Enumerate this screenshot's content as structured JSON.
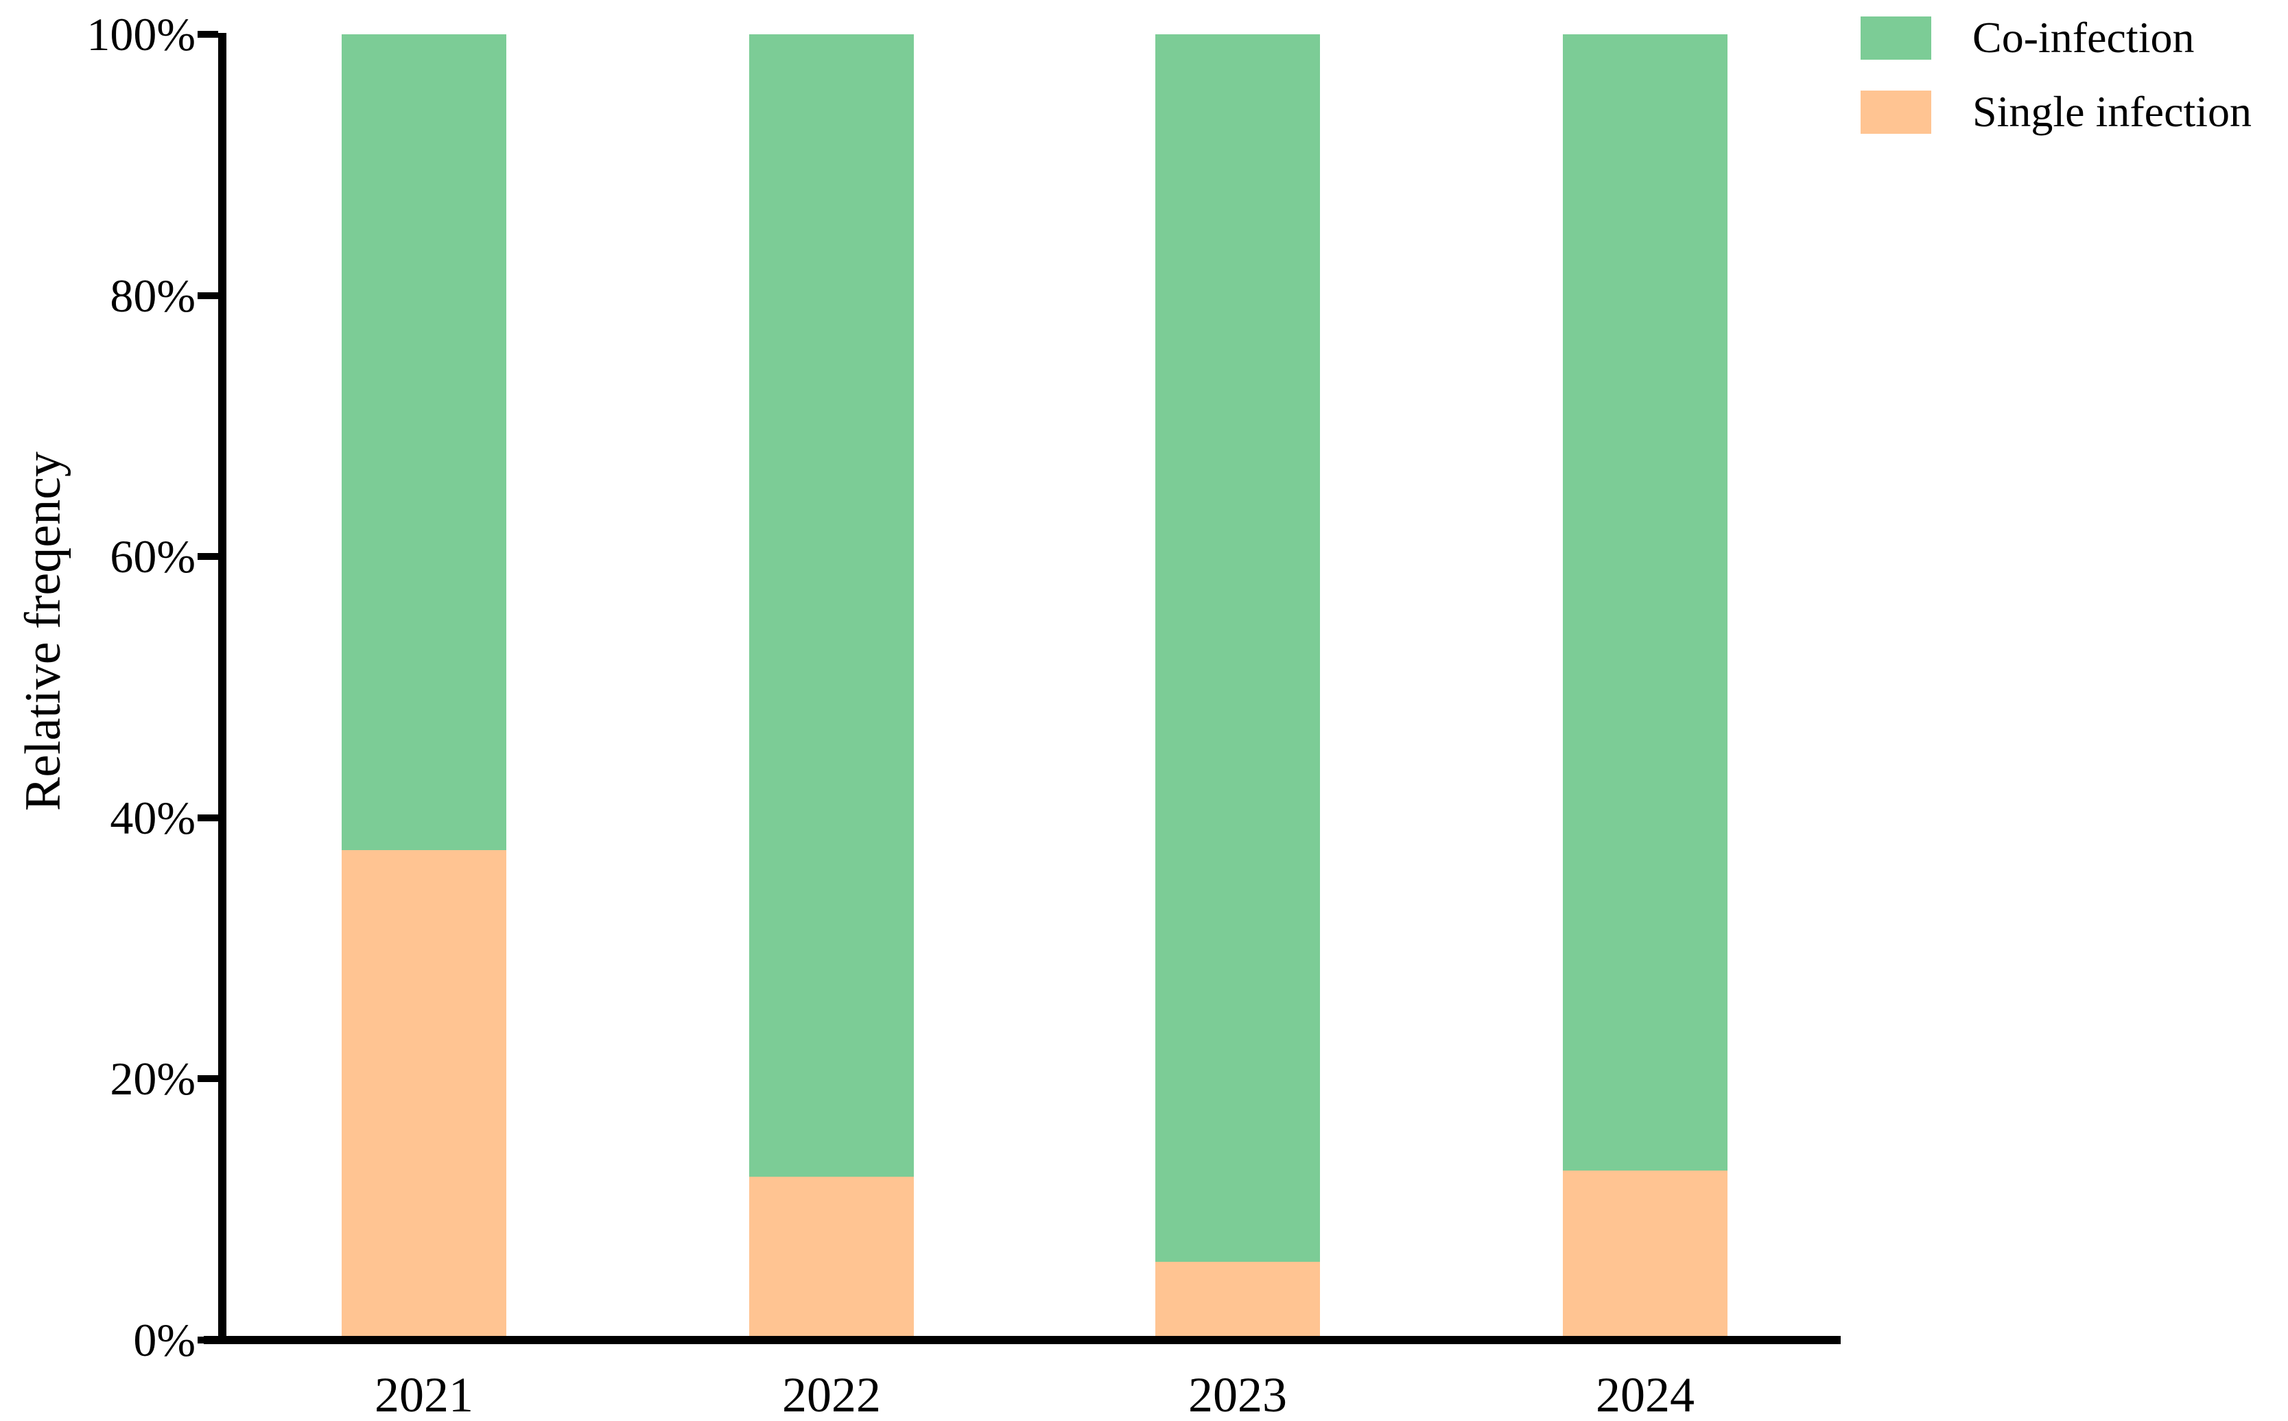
{
  "chart_data": {
    "type": "bar",
    "stacked": true,
    "units": "percent",
    "title": "",
    "categories": [
      "2021",
      "2022",
      "2023",
      "2024"
    ],
    "series": [
      {
        "name": "Single infection",
        "color": "#FFC492",
        "values": [
          37.5,
          12.5,
          6,
          13
        ]
      },
      {
        "name": "Co-infection",
        "color": "#7CCC96",
        "values": [
          62.5,
          87.5,
          94,
          87
        ]
      }
    ],
    "xlabel": "",
    "ylabel": "Relative freqency",
    "ylim": [
      0,
      100
    ],
    "ytick_values": [
      0,
      20,
      40,
      60,
      80,
      100
    ],
    "ytick_labels": [
      "0%",
      "20%",
      "40%",
      "60%",
      "80%",
      "100%"
    ],
    "grid": false,
    "legend_position": "top-right",
    "axis_color": "#000000"
  },
  "legend": {
    "items": [
      {
        "label": "Co-infection",
        "color": "#7CCC96"
      },
      {
        "label": "Single infection",
        "color": "#FFC492"
      }
    ]
  }
}
